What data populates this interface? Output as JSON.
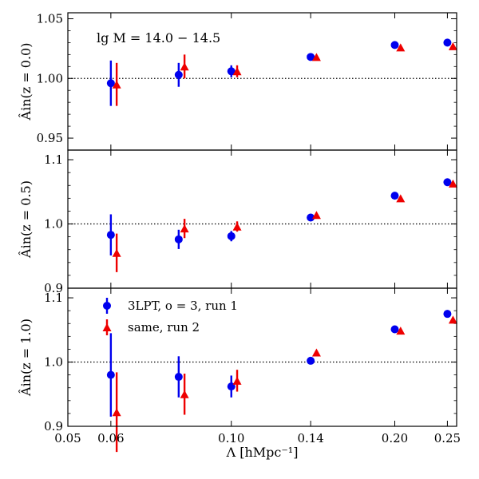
{
  "chart_data": {
    "type": "scatter",
    "x_scale": "log",
    "xlim": [
      0.05,
      0.26
    ],
    "xticks": [
      0.05,
      0.06,
      0.1,
      0.14,
      0.2,
      0.25
    ],
    "xtick_labels": [
      "0.05",
      "0.06",
      "0.10",
      "0.14",
      "0.20",
      "0.25"
    ],
    "xlabel": "Λ [hMpc⁻¹]",
    "colors": {
      "series1": "#0000ee",
      "series2": "#ee0000"
    },
    "legend": {
      "location": "upper-left of bottom panel",
      "entries": [
        "3LPT, o = 3, run 1",
        "same, run 2"
      ]
    },
    "panels": [
      {
        "ylabel": "Âin(z = 0.0)",
        "ylim": [
          0.94,
          1.055
        ],
        "yticks": [
          0.95,
          1.0,
          1.05
        ],
        "ytick_labels": [
          "0.95",
          "1.00",
          "1.05"
        ],
        "reference_line": 1.0,
        "annotation": "lg M = 14.0 − 14.5",
        "series": [
          {
            "name": "3LPT, o = 3, run 1",
            "marker": "circle",
            "x": [
              0.06,
              0.08,
              0.1,
              0.14,
              0.2,
              0.25
            ],
            "y": [
              0.996,
              1.003,
              1.006,
              1.018,
              1.028,
              1.03
            ],
            "err": [
              0.019,
              0.01,
              0.005,
              0.0,
              0.0,
              0.0
            ]
          },
          {
            "name": "same, run 2",
            "marker": "triangle",
            "x": [
              0.0615,
              0.082,
              0.1025,
              0.1435,
              0.205,
              0.256
            ],
            "y": [
              0.995,
              1.01,
              1.006,
              1.018,
              1.026,
              1.027
            ],
            "err": [
              0.018,
              0.01,
              0.005,
              0.0,
              0.0,
              0.0
            ]
          }
        ]
      },
      {
        "ylabel": "Âin(z = 0.5)",
        "ylim": [
          0.9,
          1.115
        ],
        "yticks": [
          0.9,
          1.0,
          1.1
        ],
        "ytick_labels": [
          "0.9",
          "1.0",
          "1.1"
        ],
        "reference_line": 1.0,
        "series": [
          {
            "name": "3LPT, o = 3, run 1",
            "marker": "circle",
            "x": [
              0.06,
              0.08,
              0.1,
              0.14,
              0.2,
              0.25
            ],
            "y": [
              0.983,
              0.976,
              0.981,
              1.01,
              1.044,
              1.065
            ],
            "err": [
              0.032,
              0.015,
              0.008,
              0.0,
              0.0,
              0.0
            ]
          },
          {
            "name": "same, run 2",
            "marker": "triangle",
            "x": [
              0.0615,
              0.082,
              0.1025,
              0.1435,
              0.205,
              0.256
            ],
            "y": [
              0.955,
              0.993,
              0.996,
              1.014,
              1.04,
              1.063
            ],
            "err": [
              0.03,
              0.015,
              0.008,
              0.0,
              0.0,
              0.0
            ]
          }
        ]
      },
      {
        "ylabel": "Âin(z = 1.0)",
        "ylim": [
          0.9,
          1.115
        ],
        "yticks": [
          0.9,
          1.0,
          1.1
        ],
        "ytick_labels": [
          "0.9",
          "1.0",
          "1.1"
        ],
        "reference_line": 1.0,
        "series": [
          {
            "name": "3LPT, o = 3, run 1",
            "marker": "circle",
            "x": [
              0.06,
              0.08,
              0.1,
              0.14,
              0.2,
              0.25
            ],
            "y": [
              0.98,
              0.977,
              0.962,
              1.002,
              1.051,
              1.075
            ],
            "err": [
              0.065,
              0.032,
              0.017,
              0.0,
              0.0,
              0.0
            ]
          },
          {
            "name": "same, run 2",
            "marker": "triangle",
            "x": [
              0.0615,
              0.082,
              0.1025,
              0.1435,
              0.205,
              0.256
            ],
            "y": [
              0.922,
              0.95,
              0.971,
              1.015,
              1.049,
              1.066
            ],
            "err": [
              0.062,
              0.032,
              0.017,
              0.0,
              0.0,
              0.0
            ]
          }
        ]
      }
    ]
  }
}
